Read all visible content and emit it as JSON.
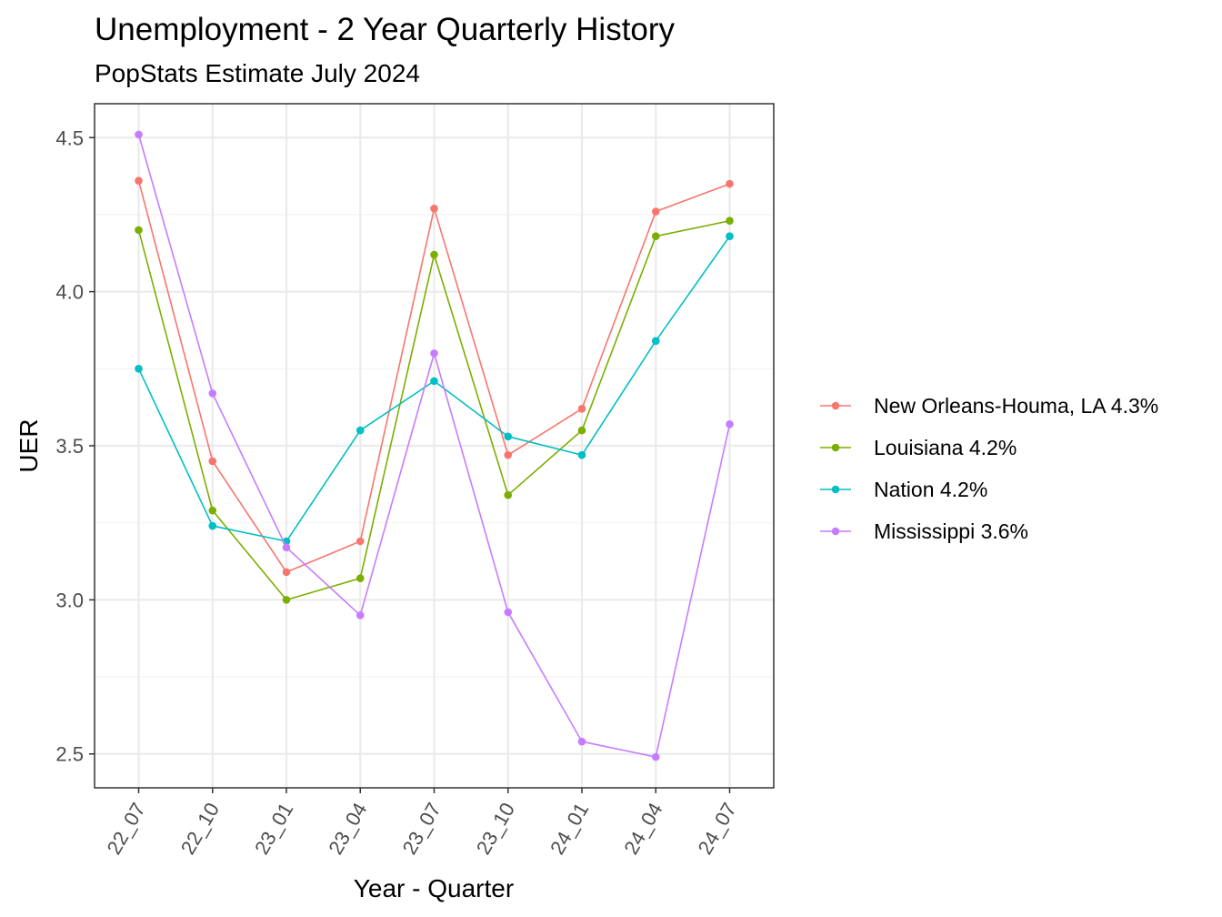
{
  "chart_data": {
    "type": "line",
    "title": "Unemployment - 2 Year Quarterly History",
    "subtitle": "PopStats Estimate July 2024",
    "xlabel": "Year - Quarter",
    "ylabel": "UER",
    "categories": [
      "22_07",
      "22_10",
      "23_01",
      "23_04",
      "23_07",
      "23_10",
      "24_01",
      "24_04",
      "24_07"
    ],
    "ylim": [
      2.39,
      4.61
    ],
    "yticks": [
      2.5,
      3.0,
      3.5,
      4.0,
      4.5
    ],
    "ytick_labels": [
      "2.5",
      "3.0",
      "3.5",
      "4.0",
      "4.5"
    ],
    "grid": true,
    "legend_position": "right",
    "series": [
      {
        "name": "New Orleans-Houma, LA 4.3%",
        "color": "#F8766D",
        "values": [
          4.36,
          3.45,
          3.09,
          3.19,
          4.27,
          3.47,
          3.62,
          4.26,
          4.35
        ]
      },
      {
        "name": "Louisiana 4.2%",
        "color": "#7CAE00",
        "values": [
          4.2,
          3.29,
          3.0,
          3.07,
          4.12,
          3.34,
          3.55,
          4.18,
          4.23
        ]
      },
      {
        "name": "Nation 4.2%",
        "color": "#00BFC4",
        "values": [
          3.75,
          3.24,
          3.19,
          3.55,
          3.71,
          3.53,
          3.47,
          3.84,
          4.18
        ]
      },
      {
        "name": "Mississippi 3.6%",
        "color": "#C77CFF",
        "values": [
          4.51,
          3.67,
          3.17,
          2.95,
          3.8,
          2.96,
          2.54,
          2.49,
          3.57
        ]
      }
    ]
  }
}
